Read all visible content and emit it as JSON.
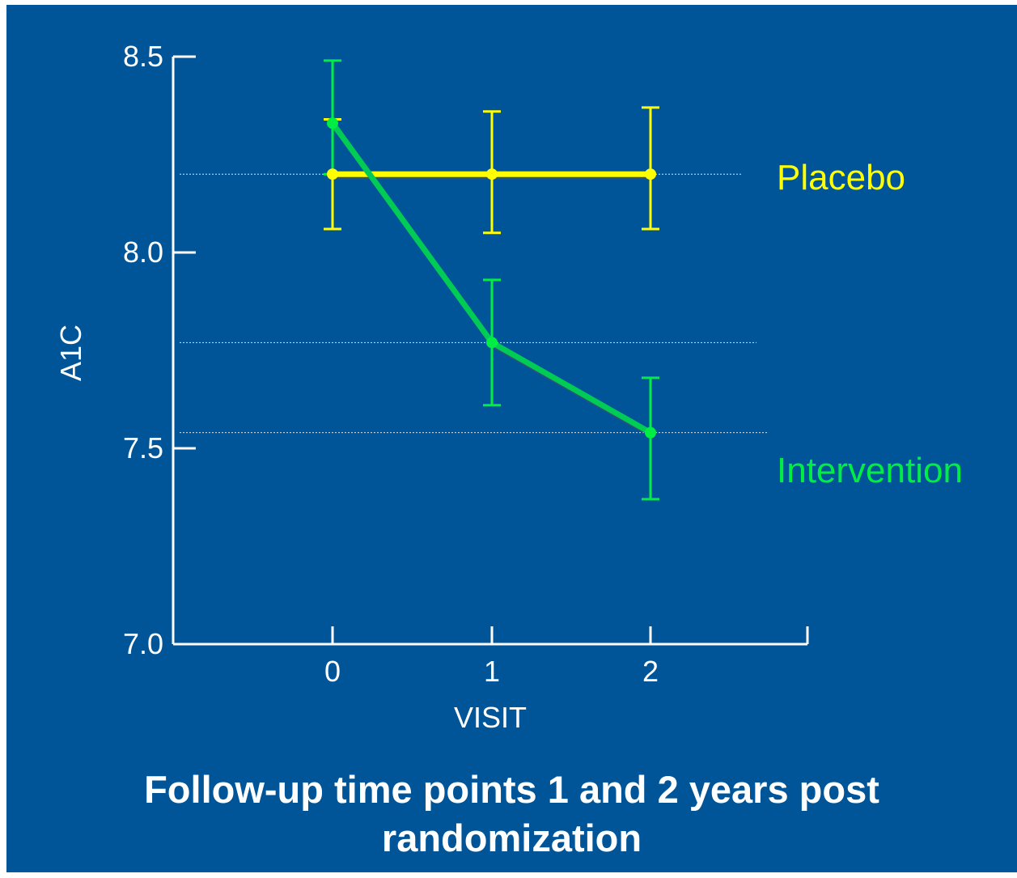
{
  "chart_data": {
    "type": "line",
    "title": "",
    "xlabel": "VISIT",
    "ylabel": "A1C",
    "x": [
      0,
      1,
      2
    ],
    "x_tick_labels": [
      "0",
      "1",
      "2"
    ],
    "ylim": [
      7.0,
      8.5
    ],
    "y_ticks": [
      7.0,
      7.5,
      8.0,
      8.5
    ],
    "y_tick_labels": [
      "7.0",
      "7.5",
      "8.0",
      "8.5"
    ],
    "grid": false,
    "legend_placement": "right",
    "series": [
      {
        "name": "Placebo",
        "color": "#ffff00",
        "values": [
          8.2,
          8.2,
          8.2
        ],
        "error_low": [
          8.06,
          8.05,
          8.06
        ],
        "error_high": [
          8.34,
          8.36,
          8.37
        ]
      },
      {
        "name": "Intervention",
        "color": "#00ee44",
        "line_color": "#00cc55",
        "values": [
          8.33,
          7.77,
          7.54
        ],
        "error_low": [
          8.2,
          7.61,
          7.37
        ],
        "error_high": [
          8.49,
          7.93,
          7.68
        ]
      }
    ],
    "reference_lines": [
      8.2,
      7.77,
      7.54
    ]
  },
  "caption": {
    "line1": "Follow-up time points 1 and 2 years post",
    "line2": "randomization"
  }
}
